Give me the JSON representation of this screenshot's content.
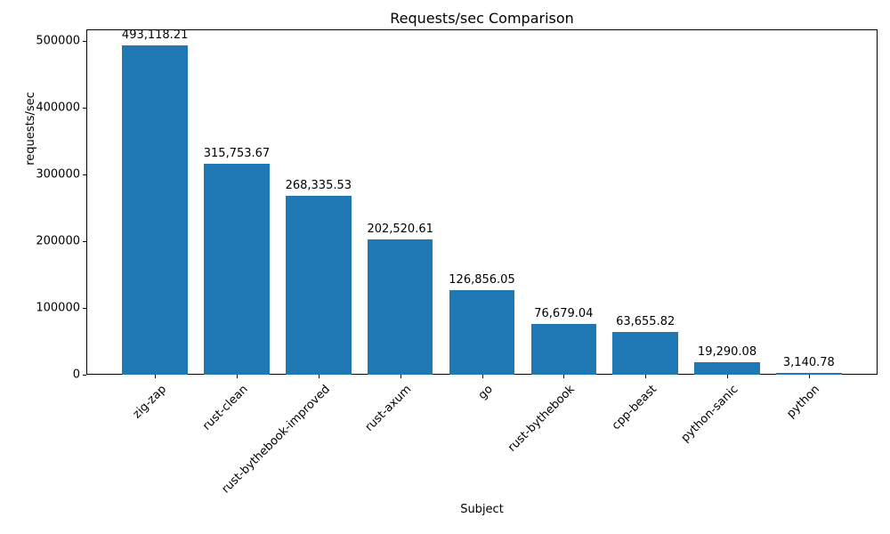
{
  "chart_data": {
    "type": "bar",
    "title": "Requests/sec Comparison",
    "xlabel": "Subject",
    "ylabel": "requests/sec",
    "categories": [
      "zig-zap",
      "rust-clean",
      "rust-bythebook-improved",
      "rust-axum",
      "go",
      "rust-bythebook",
      "cpp-beast",
      "python-sanic",
      "python"
    ],
    "values": [
      493118.21,
      315753.67,
      268335.53,
      202520.61,
      126856.05,
      76679.04,
      63655.82,
      19290.08,
      3140.78
    ],
    "value_labels": [
      "493,118.21",
      "315,753.67",
      "268,335.53",
      "202,520.61",
      "126,856.05",
      "76,679.04",
      "63,655.82",
      "19,290.08",
      "3,140.78"
    ],
    "yticks": [
      0,
      100000,
      200000,
      300000,
      400000,
      500000
    ],
    "ytick_labels": [
      "0",
      "100000",
      "200000",
      "300000",
      "400000",
      "500000"
    ],
    "ylim": [
      0,
      517774
    ],
    "bar_color": "#1f77b4",
    "bar_width_fraction": 0.8,
    "x_tick_rotation": 45,
    "grid": false,
    "legend": null
  }
}
